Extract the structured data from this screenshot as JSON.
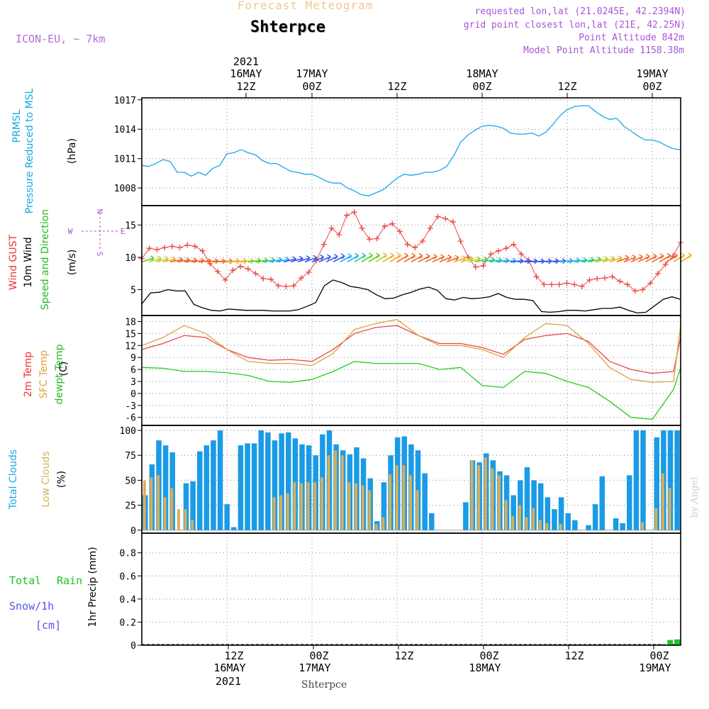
{
  "header": {
    "title_top": "Forecast Meteogram",
    "location": "Shterpce",
    "model": "ICON-EU, ~ 7km",
    "requested": "requested lon,lat (21.0245E, 42.2394N)",
    "grid_point": "grid point closest lon,lat (21E, 42.25N)",
    "point_altitude": "Point Altitude 842m",
    "model_altitude": "Model Point Altitude 1158.38m",
    "footer_location": "Shterpce",
    "credit": "by Angel"
  },
  "colors": {
    "pressure": "#1aa7e6",
    "gust": "#ee4444",
    "wind": "#000000",
    "temp": "#e84a4a",
    "sfc": "#e0a040",
    "dewpt": "#22cc22",
    "total_clouds": "#1a9be6",
    "low_clouds": "#d9ae57",
    "rain": "#22c222",
    "snow": "#5555ee",
    "annot": "#a855d6"
  },
  "time_axis": {
    "top_year": "2021",
    "top_labels": [
      {
        "t": 15,
        "line1": "16MAY",
        "line2": "12Z"
      },
      {
        "t": 24,
        "line1": "17MAY",
        "line2": "00Z"
      },
      {
        "t": 36,
        "line1": "",
        "line2": "12Z"
      },
      {
        "t": 48,
        "line1": "18MAY",
        "line2": "00Z"
      },
      {
        "t": 60,
        "line1": "",
        "line2": "12Z"
      },
      {
        "t": 72,
        "line1": "19MAY",
        "line2": "00Z"
      }
    ],
    "bottom_labels": [
      {
        "t": 12,
        "line1": "12Z",
        "line2": "16MAY",
        "line3": "2021"
      },
      {
        "t": 24,
        "line1": "00Z",
        "line2": "17MAY",
        "line3": ""
      },
      {
        "t": 36,
        "line1": "12Z",
        "line2": "",
        "line3": ""
      },
      {
        "t": 48,
        "line1": "00Z",
        "line2": "18MAY",
        "line3": ""
      },
      {
        "t": 60,
        "line1": "12Z",
        "line2": "",
        "line3": ""
      },
      {
        "t": 72,
        "line1": "00Z",
        "line2": "19MAY",
        "line3": ""
      }
    ]
  },
  "chart_data": [
    {
      "type": "line",
      "name": "pressure",
      "ylabel_lines": [
        "PRMSL",
        "Pressure Reduced to MSL"
      ],
      "unit": "(hPa)",
      "yticks": [
        "1008",
        "1011",
        "1014",
        "1017"
      ],
      "ylim": [
        1006.2,
        1017.2
      ],
      "x_hours": [
        0,
        1,
        2,
        3,
        4,
        5,
        6,
        7,
        8,
        9,
        10,
        11,
        12,
        13,
        14,
        15,
        16,
        17,
        18,
        19,
        20,
        21,
        22,
        23,
        24,
        25,
        26,
        27,
        28,
        29,
        30,
        31,
        32,
        33,
        34,
        35,
        36,
        37,
        38,
        39,
        40,
        41,
        42,
        43,
        44,
        45,
        46,
        47,
        48,
        49,
        50,
        51,
        52,
        53,
        54,
        55,
        56,
        57,
        58,
        59,
        60,
        61,
        62,
        63,
        64,
        65,
        66,
        67,
        68,
        69,
        70,
        71,
        72,
        73,
        74,
        75,
        76
      ],
      "series": [
        {
          "values": [
            1010.3,
            1010.2,
            1010.5,
            1010.9,
            1010.7,
            1009.6,
            1009.6,
            1009.2,
            1009.6,
            1009.3,
            1010.0,
            1010.3,
            1011.5,
            1011.6,
            1011.9,
            1011.6,
            1011.4,
            1010.8,
            1010.5,
            1010.5,
            1010.1,
            1009.7,
            1009.6,
            1009.4,
            1009.4,
            1009.1,
            1008.7,
            1008.5,
            1008.5,
            1008.0,
            1007.7,
            1007.3,
            1007.2,
            1007.5,
            1007.8,
            1008.4,
            1009.0,
            1009.4,
            1009.3,
            1009.4,
            1009.6,
            1009.6,
            1009.8,
            1010.2,
            1011.3,
            1012.7,
            1013.4,
            1013.9,
            1014.3,
            1014.4,
            1014.3,
            1014.1,
            1013.6,
            1013.5,
            1013.5,
            1013.6,
            1013.3,
            1013.7,
            1014.5,
            1015.4,
            1016.0,
            1016.3,
            1016.4,
            1016.4,
            1015.8,
            1015.3,
            1015.0,
            1015.1,
            1014.3,
            1013.8,
            1013.3,
            1012.9,
            1012.9,
            1012.7,
            1012.3,
            1012.0,
            1011.9
          ]
        }
      ]
    },
    {
      "type": "line",
      "name": "wind",
      "ylabel_lines": [
        "Wind GUST",
        "10m Wind",
        "Speed and Direction"
      ],
      "unit": "(m/s)",
      "compass": {
        "n": "N",
        "s": "S",
        "e": "E",
        "w": "W"
      },
      "yticks": [
        "5",
        "10",
        "15"
      ],
      "ylim": [
        1.0,
        18.0
      ],
      "x_hours": [
        0,
        1,
        2,
        3,
        4,
        5,
        6,
        7,
        8,
        9,
        10,
        11,
        12,
        13,
        14,
        15,
        16,
        17,
        18,
        19,
        20,
        21,
        22,
        23,
        24,
        25,
        26,
        27,
        28,
        29,
        30,
        31,
        32,
        33,
        34,
        35,
        36,
        37,
        38,
        39,
        40,
        41,
        42,
        43,
        44,
        45,
        46,
        47,
        48,
        49,
        50,
        51,
        52,
        53,
        54,
        55,
        56,
        57,
        58,
        59,
        60,
        61,
        62,
        63,
        64,
        65,
        66,
        67,
        68,
        69,
        70,
        71,
        72,
        73,
        74,
        75,
        76
      ],
      "series": [
        {
          "name": "Wind GUST",
          "values": [
            9.8,
            11.4,
            11.2,
            11.5,
            11.7,
            11.5,
            11.9,
            11.7,
            11.0,
            9.0,
            7.8,
            6.5,
            8.0,
            8.6,
            8.2,
            7.5,
            6.7,
            6.6,
            5.6,
            5.5,
            5.6,
            6.8,
            7.7,
            9.5,
            12.0,
            14.5,
            13.5,
            16.5,
            17.0,
            14.5,
            12.8,
            12.9,
            14.8,
            15.2,
            14.0,
            12.0,
            11.5,
            12.5,
            14.5,
            16.3,
            16.0,
            15.5,
            12.5,
            10.0,
            8.5,
            8.7,
            10.5,
            11.0,
            11.4,
            12.0,
            10.5,
            9.5,
            7.0,
            5.8,
            5.8,
            5.8,
            6.0,
            5.8,
            5.5,
            6.5,
            6.7,
            6.8,
            7.0,
            6.3,
            5.8,
            4.8,
            5.0,
            6.0,
            7.5,
            8.9,
            10.2,
            12.3
          ]
        },
        {
          "name": "10m Wind",
          "values": [
            2.8,
            4.5,
            4.6,
            5.0,
            4.8,
            4.8,
            2.7,
            2.2,
            1.8,
            1.7,
            2.0,
            1.9,
            1.8,
            1.8,
            1.8,
            1.7,
            1.7,
            1.7,
            1.9,
            2.4,
            3.0,
            5.6,
            6.5,
            6.1,
            5.5,
            5.3,
            5.0,
            4.2,
            3.6,
            3.7,
            4.2,
            4.6,
            5.1,
            5.4,
            4.9,
            3.6,
            3.4,
            3.8,
            3.6,
            3.7,
            3.9,
            4.4,
            3.8,
            3.5,
            3.5,
            3.3,
            1.6,
            1.5,
            1.6,
            1.8,
            1.8,
            1.7,
            1.9,
            2.1,
            2.1,
            2.3,
            1.8,
            1.4,
            1.5,
            2.5,
            3.5,
            3.9,
            3.5
          ]
        }
      ]
    },
    {
      "type": "line",
      "name": "temperature",
      "ylabel_lines": [
        "2m Temp",
        "SFC Temp",
        "dewpt Temp"
      ],
      "unit": "(C)",
      "yticks": [
        "-6",
        "-3",
        "0",
        "3",
        "6",
        "9",
        "12",
        "15",
        "18"
      ],
      "ylim": [
        -8.0,
        19.5
      ],
      "x_hours": [
        0,
        3,
        6,
        9,
        12,
        15,
        18,
        21,
        24,
        27,
        30,
        33,
        36,
        39,
        42,
        45,
        48,
        51,
        54,
        57,
        60,
        63,
        66,
        69,
        72,
        75,
        76
      ],
      "series": [
        {
          "name": "2m Temp",
          "values": [
            11.0,
            12.5,
            14.5,
            14.0,
            11.0,
            9.0,
            8.3,
            8.5,
            8.0,
            11.0,
            15.0,
            16.5,
            17.0,
            14.5,
            12.5,
            12.5,
            11.5,
            9.8,
            13.5,
            14.5,
            15.0,
            13.0,
            8.0,
            6.0,
            5.0,
            5.5,
            14.0
          ]
        },
        {
          "name": "SFC Temp",
          "values": [
            12.0,
            14.0,
            17.0,
            15.0,
            11.0,
            8.0,
            7.5,
            7.5,
            7.0,
            10.0,
            16.0,
            17.5,
            18.5,
            14.5,
            12.0,
            12.0,
            11.0,
            9.0,
            14.0,
            17.5,
            17.0,
            12.5,
            6.5,
            3.5,
            2.8,
            3.0,
            17.0
          ]
        },
        {
          "name": "dewpt Temp",
          "values": [
            6.5,
            6.3,
            5.5,
            5.5,
            5.2,
            4.5,
            3.0,
            2.8,
            3.5,
            5.5,
            8.0,
            7.5,
            7.5,
            7.5,
            6.0,
            6.5,
            2.0,
            1.5,
            5.5,
            5.0,
            3.0,
            1.5,
            -2.0,
            -6.0,
            -6.5,
            1.0,
            6.5
          ]
        }
      ]
    },
    {
      "type": "bar",
      "name": "clouds",
      "ylabel_lines": [
        "Total Clouds",
        "Low Clouds"
      ],
      "unit": "(%)",
      "yticks": [
        "0",
        "25",
        "50",
        "75",
        "100"
      ],
      "ylim": [
        -3,
        105
      ],
      "series": [
        {
          "name": "Total Clouds",
          "values": [
            35,
            66,
            90,
            85,
            78,
            0,
            47,
            49,
            79,
            85,
            90,
            100,
            26,
            3,
            85,
            87,
            87,
            100,
            98,
            90,
            97,
            98,
            92,
            86,
            85,
            75,
            96,
            100,
            86,
            80,
            76,
            83,
            72,
            52,
            9,
            48,
            75,
            93,
            94,
            86,
            80,
            57,
            17,
            0,
            0,
            0,
            0,
            28,
            70,
            68,
            77,
            70,
            59,
            55,
            35,
            50,
            63,
            50,
            47,
            33,
            21,
            33,
            17,
            10,
            0,
            5,
            26,
            54,
            0,
            12,
            7,
            55,
            100,
            100,
            0,
            93,
            100,
            100,
            100
          ]
        },
        {
          "name": "Low Clouds",
          "values": [
            50,
            53,
            55,
            33,
            42,
            21,
            21,
            10,
            0,
            0,
            0,
            0,
            0,
            0,
            0,
            0,
            0,
            0,
            0,
            33,
            35,
            37,
            48,
            47,
            48,
            48,
            53,
            75,
            80,
            75,
            48,
            47,
            45,
            40,
            6,
            13,
            56,
            65,
            65,
            55,
            40,
            0,
            0,
            0,
            0,
            0,
            0,
            0,
            70,
            65,
            73,
            62,
            55,
            30,
            14,
            25,
            13,
            22,
            10,
            7,
            0,
            6,
            0,
            0,
            0,
            0,
            0,
            0,
            0,
            0,
            0,
            0,
            0,
            8,
            0,
            22,
            57,
            42
          ]
        }
      ]
    },
    {
      "type": "bar",
      "name": "precip",
      "ylabel_lines": [
        "Total",
        "Rain",
        "Snow/1h",
        "[cm]"
      ],
      "axis_label": "1hr Precip (mm)",
      "yticks": [
        "0",
        "0.2",
        "0.4",
        "0.6",
        "0.8"
      ],
      "ylim": [
        0.0,
        0.97
      ],
      "series": [
        {
          "name": "Rain",
          "values": [
            0,
            0,
            0,
            0,
            0,
            0,
            0,
            0,
            0,
            0,
            0,
            0,
            0,
            0,
            0,
            0,
            0,
            0,
            0,
            0,
            0,
            0,
            0,
            0,
            0,
            0,
            0,
            0,
            0,
            0,
            0,
            0,
            0,
            0,
            0,
            0,
            0,
            0,
            0,
            0,
            0,
            0,
            0,
            0,
            0,
            0,
            0,
            0,
            0,
            0,
            0,
            0,
            0,
            0,
            0,
            0,
            0,
            0,
            0,
            0,
            0,
            0,
            0,
            0,
            0,
            0,
            0,
            0,
            0,
            0,
            0,
            0,
            0,
            0.004,
            0.008,
            0.045,
            0.05
          ]
        }
      ]
    }
  ]
}
